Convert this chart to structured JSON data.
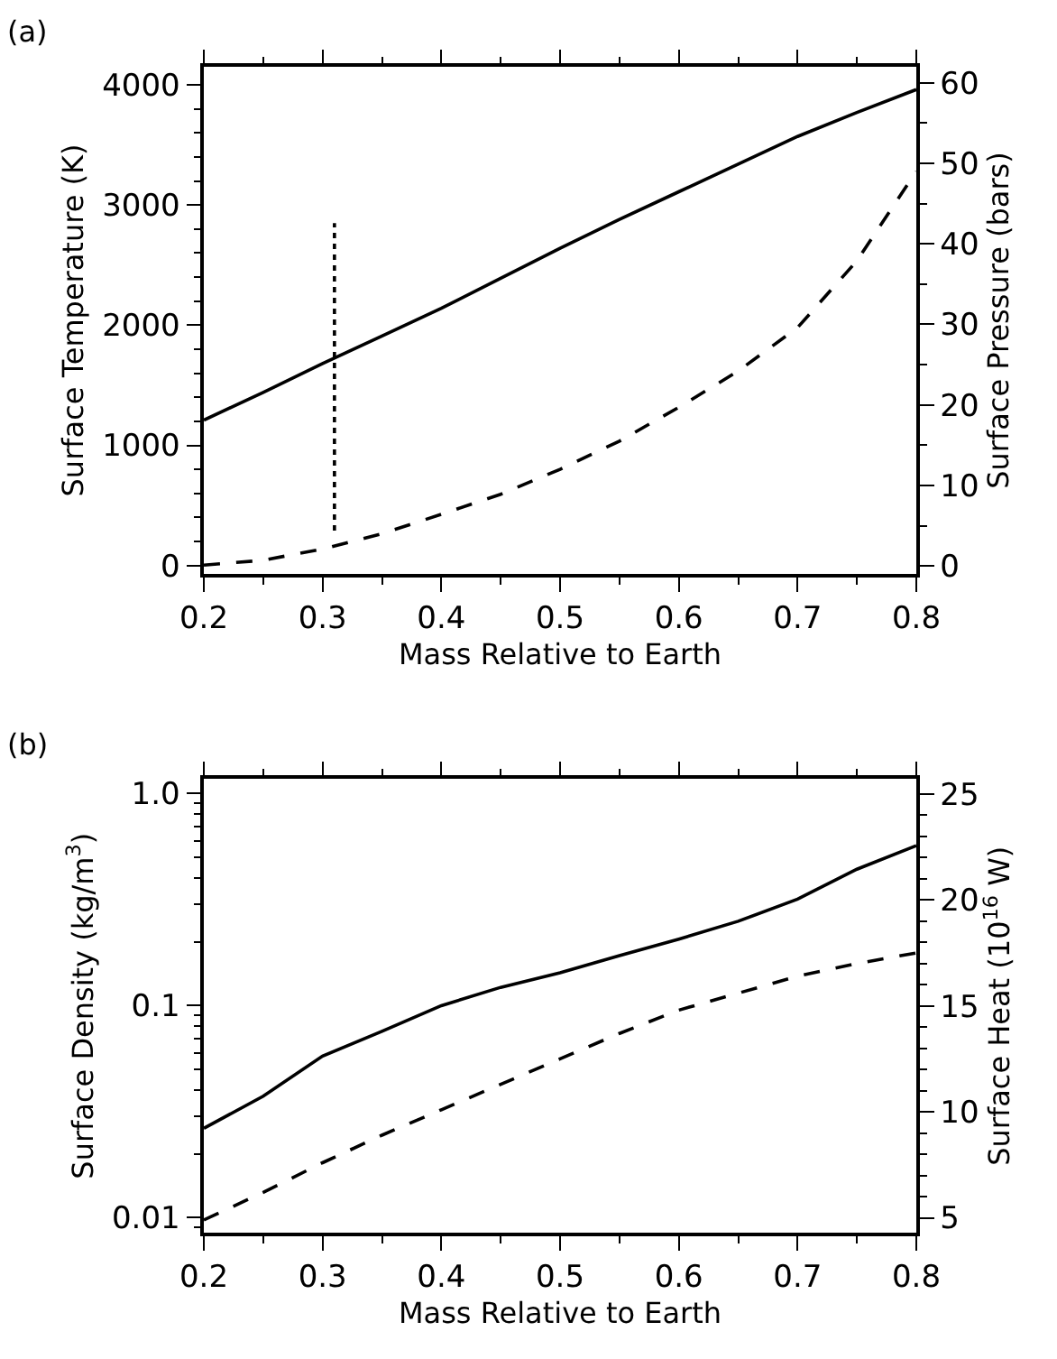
{
  "chart_data": [
    {
      "type": "line",
      "title": "(a)",
      "xlabel": "Mass Relative to Earth",
      "ylabel": "Surface Temperature (K)",
      "y2label": "Surface Pressure (bars)",
      "x": [
        0.2,
        0.25,
        0.3,
        0.35,
        0.4,
        0.45,
        0.5,
        0.55,
        0.6,
        0.65,
        0.7,
        0.75,
        0.8
      ],
      "series": [
        {
          "color": "#000000",
          "line_style": "solid",
          "values": [
            1210,
            1440,
            1680,
            1910,
            2140,
            2390,
            2640,
            2880,
            3110,
            3340,
            3570,
            3770,
            3960
          ]
        },
        {
          "color": "#000000",
          "line_style": "dashed",
          "axis": "y2",
          "values": [
            0.1,
            0.7,
            2.1,
            4.0,
            6.4,
            8.9,
            12.0,
            15.5,
            19.7,
            24.2,
            29.6,
            37.9,
            49.0
          ]
        },
        {
          "color": "#000000",
          "line_style": "dotted",
          "x": [
            0.31,
            0.31
          ],
          "values": [
            290,
            2850
          ]
        }
      ],
      "xlim": [
        0.2,
        0.8
      ],
      "xticks": [
        0.2,
        0.3,
        0.4,
        0.5,
        0.6,
        0.7,
        0.8
      ],
      "ylim": [
        -70,
        4150
      ],
      "yticks": [
        0,
        1000,
        2000,
        3000,
        4000
      ],
      "y2lim": [
        -1,
        62
      ],
      "y2ticks": [
        0,
        10,
        20,
        30,
        40,
        50,
        60
      ]
    },
    {
      "type": "line",
      "title": "(b)",
      "xlabel": "Mass Relative to Earth",
      "ylabel": "Surface Density (kg/m$^{3}$)",
      "y2label": "Surface Heat (10$^{16}$ W)",
      "x": [
        0.2,
        0.25,
        0.3,
        0.35,
        0.4,
        0.45,
        0.5,
        0.55,
        0.6,
        0.65,
        0.7,
        0.75,
        0.8
      ],
      "series": [
        {
          "color": "#000000",
          "line_style": "solid",
          "values": [
            0.0264,
            0.0374,
            0.0578,
            0.0757,
            0.1,
            0.122,
            0.143,
            0.172,
            0.206,
            0.25,
            0.318,
            0.44,
            0.568
          ]
        },
        {
          "color": "#000000",
          "line_style": "dashed",
          "axis": "y2",
          "values": [
            4.9,
            6.2,
            7.6,
            8.9,
            10.1,
            11.3,
            12.5,
            13.7,
            14.8,
            15.6,
            16.4,
            17.0,
            17.5
          ]
        }
      ],
      "xlim": [
        0.2,
        0.8
      ],
      "xticks": [
        0.2,
        0.3,
        0.4,
        0.5,
        0.6,
        0.7,
        0.8
      ],
      "log": "y",
      "ylim": [
        0.0085,
        1.17
      ],
      "yticks": [
        0.01,
        0.1,
        {
          "value": 1,
          "label": "1.0"
        }
      ],
      "y2lim": [
        4.3,
        25.7
      ],
      "y2ticks": [
        5,
        10,
        15,
        20,
        25
      ]
    }
  ]
}
